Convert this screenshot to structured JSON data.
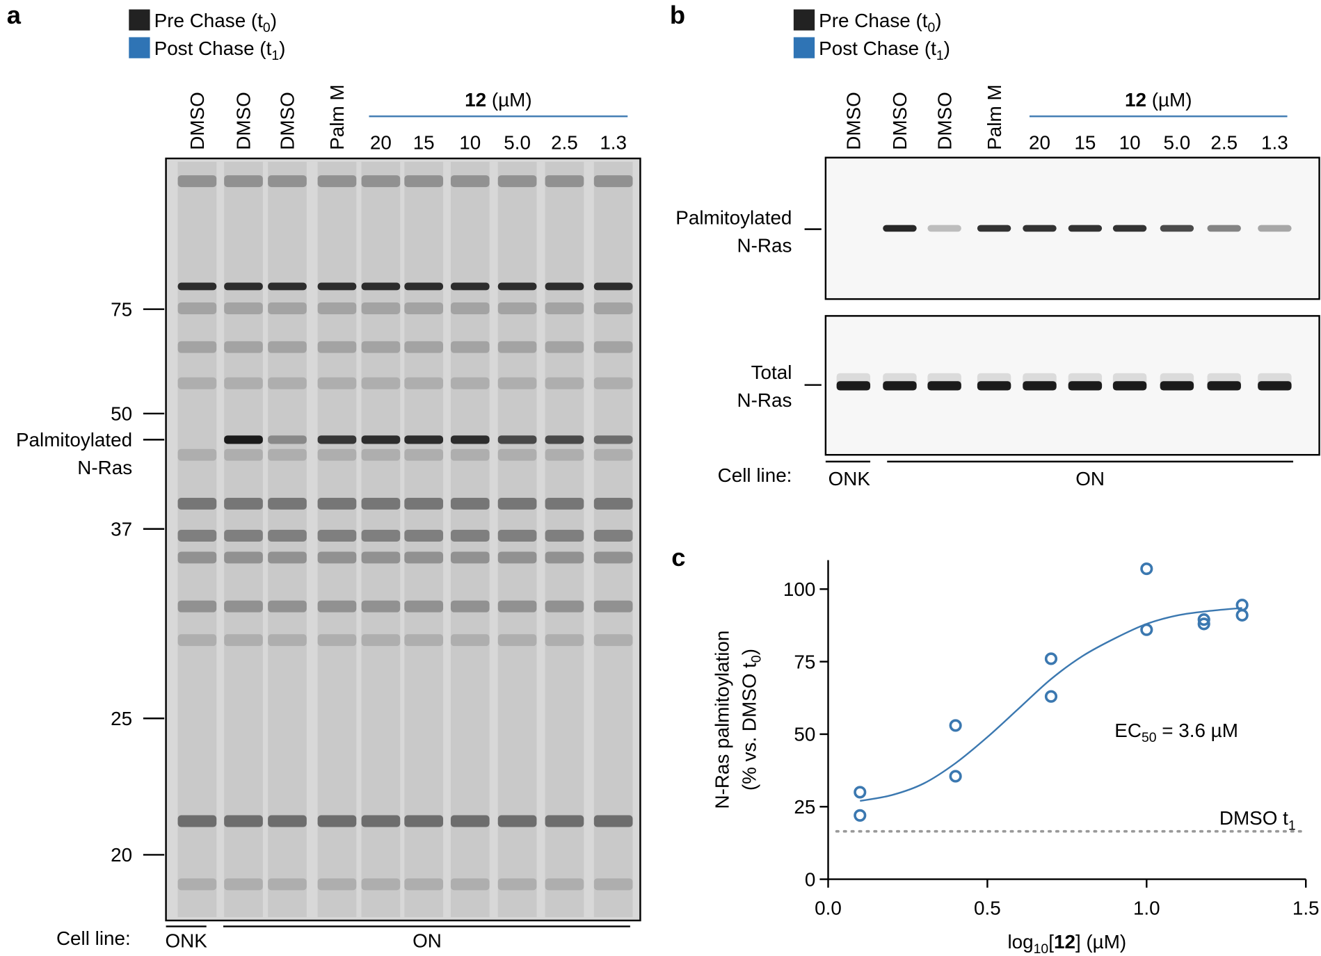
{
  "panel_a": {
    "label": "a",
    "legend": [
      {
        "color": "#222222",
        "text": "Pre Chase (t",
        "sub": "0",
        "tail": ")"
      },
      {
        "color": "#2f74b5",
        "text": "Post Chase (t",
        "sub": "1",
        "tail": ")"
      }
    ],
    "lanes": [
      "DMSO",
      "DMSO",
      "DMSO",
      "Palm M"
    ],
    "lane_colors": [
      "#000000",
      "#000000",
      "#3b78b0",
      "#3b78b0"
    ],
    "group": {
      "bold": "12",
      "text": " (µM)",
      "color": "#3b78b0"
    },
    "doses": [
      "20",
      "15",
      "10",
      "5.0",
      "2.5",
      "1.3"
    ],
    "markers": [
      "75",
      "50",
      "37",
      "25",
      "20"
    ],
    "band_label": [
      "Palmitoylated",
      "N-Ras"
    ],
    "cell_line": {
      "label": "Cell line:",
      "groups": [
        "ONK",
        "ON"
      ]
    }
  },
  "panel_b": {
    "label": "b",
    "legend": [
      {
        "color": "#222222",
        "text": "Pre Chase (t",
        "sub": "0",
        "tail": ")"
      },
      {
        "color": "#2f74b5",
        "text": "Post Chase (t",
        "sub": "1",
        "tail": ")"
      }
    ],
    "lanes": [
      "DMSO",
      "DMSO",
      "DMSO",
      "Palm M"
    ],
    "lane_colors": [
      "#000000",
      "#000000",
      "#3b78b0",
      "#3b78b0"
    ],
    "group": {
      "bold": "12",
      "text": " (µM)",
      "color": "#3b78b0"
    },
    "doses": [
      "20",
      "15",
      "10",
      "5.0",
      "2.5",
      "1.3"
    ],
    "blots": [
      [
        "Palmitoylated",
        "N-Ras"
      ],
      [
        "Total",
        "N-Ras"
      ]
    ],
    "cell_line": {
      "label": "Cell line:",
      "groups": [
        "ONK",
        "ON"
      ]
    }
  },
  "chart_data": {
    "type": "scatter",
    "label": "c",
    "xlabel": {
      "pre": "log",
      "sub": "10",
      "mid": "[",
      "bold": "12",
      "tail": "] (µM)"
    },
    "ylabel": {
      "line1": "N-Ras palmitoylation",
      "pre": "(% vs. DMSO t",
      "sub": "0",
      "tail": ")"
    },
    "annotation": {
      "pre": "EC",
      "sub": "50",
      "tail": " = 3.6 µM"
    },
    "xlim": [
      0,
      1.5
    ],
    "xticks": [
      {
        "value": 0,
        "label": "0.0"
      },
      0.5,
      {
        "value": 1,
        "label": "1.0"
      },
      1.5
    ],
    "ylim": [
      0,
      110
    ],
    "yticks": [
      0,
      25,
      50,
      75,
      100
    ],
    "series": [
      {
        "color": "#3b78b0",
        "x": [
          0.1,
          0.1,
          0.4,
          0.4,
          0.7,
          0.7,
          1.0,
          1.0,
          1.18,
          1.18,
          1.3,
          1.3
        ],
        "values": [
          30,
          22,
          53,
          35.5,
          76,
          63,
          107,
          86,
          89.5,
          88,
          94.5,
          91
        ]
      },
      {
        "type": "line",
        "color": "#3b78b0",
        "x": [
          0.1,
          0.2,
          0.3,
          0.4,
          0.5,
          0.6,
          0.7,
          0.8,
          0.9,
          1.0,
          1.1,
          1.2,
          1.3
        ],
        "values": [
          27,
          29,
          33,
          40,
          49,
          59,
          69,
          77,
          83,
          88,
          91,
          92.5,
          93.5
        ]
      }
    ],
    "reference": {
      "value": 16.5,
      "pre": "DMSO t",
      "sub": "1",
      "color": "#999999"
    }
  }
}
